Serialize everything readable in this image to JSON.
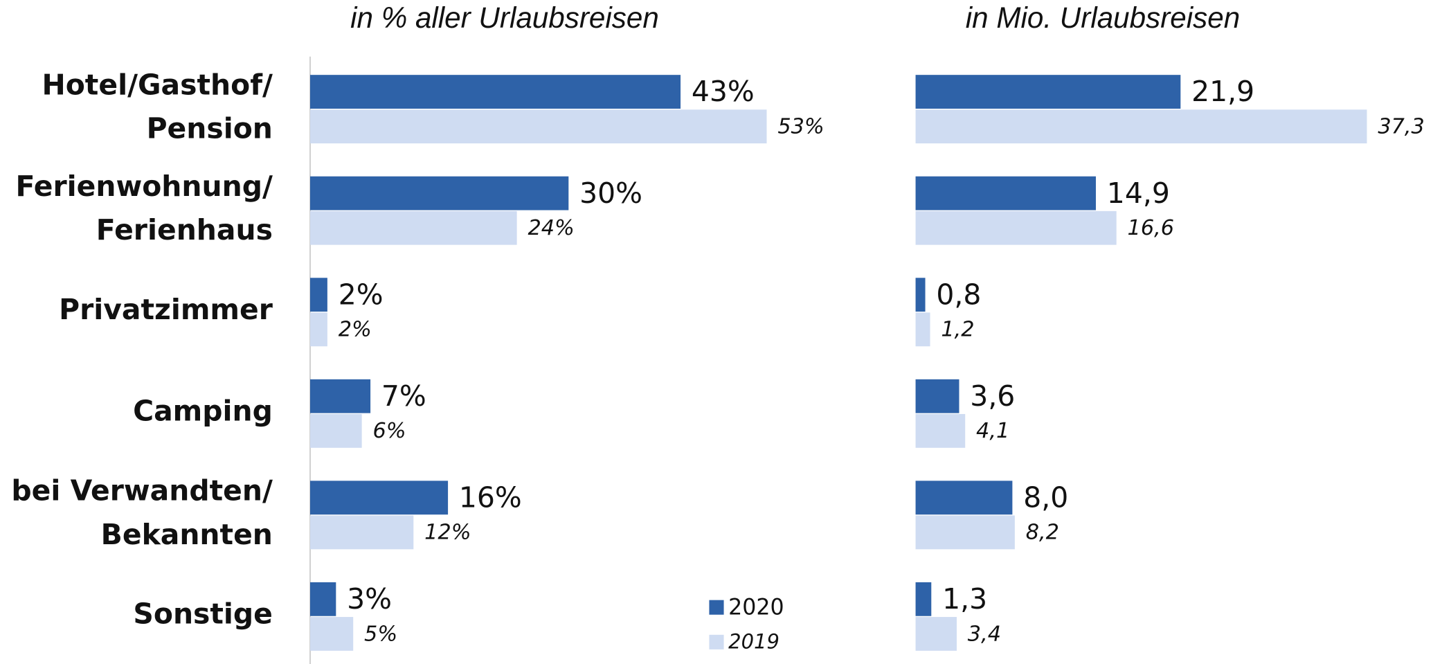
{
  "chart_data": [
    {
      "type": "hbar",
      "title": "in % aller Urlaubsreisen",
      "categories": [
        "Hotel/Gasthof/ Pension",
        "Ferienwohnung/ Ferienhaus",
        "Privatzimmer",
        "Camping",
        "bei Verwandten/ Bekannten",
        "Sonstige"
      ],
      "series": [
        {
          "name": "2020",
          "color": "#2e62a8",
          "values": [
            43,
            30,
            2,
            7,
            16,
            3
          ],
          "value_labels": [
            "43%",
            "30%",
            "2%",
            "7%",
            "16%",
            "3%"
          ]
        },
        {
          "name": "2019",
          "color": "#cfdcf2",
          "values": [
            53,
            24,
            2,
            6,
            12,
            5
          ],
          "value_labels": [
            "53%",
            "24%",
            "2%",
            "6%",
            "12%",
            "5%"
          ]
        }
      ],
      "xlim": [
        0,
        60
      ]
    },
    {
      "type": "hbar",
      "title": "in Mio. Urlaubsreisen",
      "series": [
        {
          "color": "#2e62a8",
          "values": [
            21.9,
            14.9,
            0.8,
            3.6,
            8.0,
            1.3
          ],
          "value_labels": [
            "21,9",
            "14,9",
            "0,8",
            "3,6",
            "8,0",
            "1,3"
          ]
        },
        {
          "color": "#cfdcf2",
          "values": [
            37.3,
            16.6,
            1.2,
            4.1,
            8.2,
            3.4
          ],
          "value_labels": [
            "37,3",
            "16,6",
            "1,2",
            "4,1",
            "8,2",
            "3,4"
          ]
        }
      ],
      "xlim": [
        0,
        40
      ]
    }
  ]
}
